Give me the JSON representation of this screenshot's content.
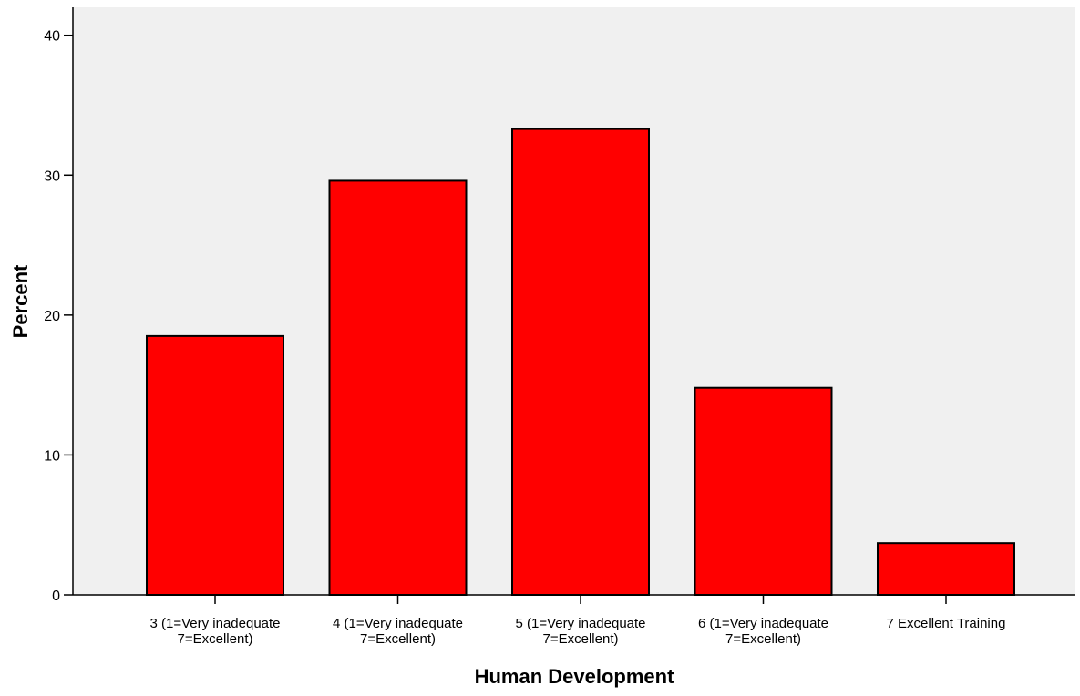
{
  "chart_data": {
    "type": "bar",
    "title": "",
    "xlabel": "Human Development",
    "ylabel": "Percent",
    "categories": [
      [
        "3 (1=Very inadequate",
        "7=Excellent)"
      ],
      [
        "4 (1=Very inadequate",
        "7=Excellent)"
      ],
      [
        "5 (1=Very inadequate",
        "7=Excellent)"
      ],
      [
        "6 (1=Very inadequate",
        "7=Excellent)"
      ],
      [
        "7 Excellent Training"
      ]
    ],
    "values": [
      18.5,
      29.6,
      33.3,
      14.8,
      3.7
    ],
    "ylim": [
      0,
      42
    ],
    "yticks": [
      0,
      10,
      20,
      30,
      40
    ],
    "grid": false,
    "colors": {
      "bar_fill": "#ff0000",
      "bar_stroke": "#000000",
      "plot_background": "#f0f0f0"
    }
  }
}
